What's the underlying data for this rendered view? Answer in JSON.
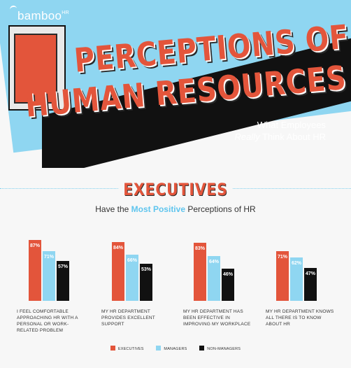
{
  "header": {
    "logo_text": "bamboo",
    "logo_superscript": "HR",
    "title_line1": "PERCEPTIONS OF",
    "title_line2": "HUMAN RESOURCES",
    "subtitle_line1": "What Employees",
    "subtitle_emphasis": "Really",
    "subtitle_rest": " Think About HR"
  },
  "section": {
    "title": "EXECUTIVES",
    "subtitle_before": "Have the ",
    "subtitle_highlight": "Most Positive",
    "subtitle_after": " Perceptions of HR"
  },
  "colors": {
    "executives": "#e3553b",
    "managers": "#8fd6f1",
    "non_managers": "#111111"
  },
  "chart_data": {
    "type": "bar",
    "categories": [
      "I FEEL COMFORTABLE APPROACHING HR WITH A PERSONAL OR WORK-RELATED PROBLEM",
      "MY HR DEPARTMENT PROVIDES EXCELLENT SUPPORT",
      "MY HR DEPARTMENT HAS BEEN EFFECTIVE IN IMPROVING MY WORKPLACE",
      "MY HR DEPARTMENT KNOWS ALL THERE IS TO KNOW ABOUT HR"
    ],
    "series": [
      {
        "name": "EXECUTIVES",
        "values": [
          87,
          84,
          83,
          71
        ],
        "labels": [
          "87%",
          "84%",
          "83%",
          "71%"
        ]
      },
      {
        "name": "MANAGERS",
        "values": [
          71,
          66,
          64,
          62
        ],
        "labels": [
          "71%",
          "66%",
          "64%",
          "62%"
        ]
      },
      {
        "name": "NON-MANAGERS",
        "values": [
          57,
          53,
          46,
          47
        ],
        "labels": [
          "57%",
          "53%",
          "46%",
          "47%"
        ]
      }
    ],
    "ylim": [
      0,
      100
    ],
    "legend_position": "bottom"
  }
}
